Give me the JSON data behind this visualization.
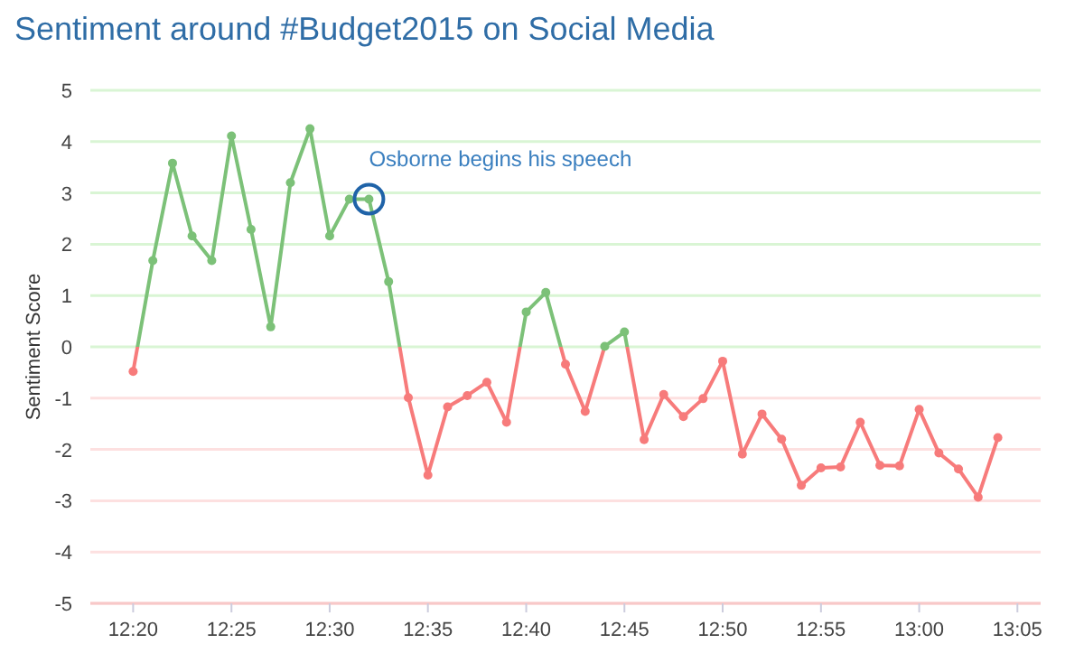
{
  "chart_data": {
    "type": "line",
    "title": "Sentiment around #Budget2015 on Social Media",
    "ylabel": "Sentiment Score",
    "x": [
      12.3333,
      12.35,
      12.3667,
      12.3833,
      12.4,
      12.4167,
      12.4333,
      12.45,
      12.4667,
      12.4833,
      12.5,
      12.5167,
      12.5333,
      12.55,
      12.5667,
      12.5833,
      12.6,
      12.6167,
      12.6333,
      12.65,
      12.6667,
      12.6833,
      12.7,
      12.7167,
      12.7333,
      12.75,
      12.7667,
      12.7833,
      12.8,
      12.8167,
      12.8333,
      12.85,
      12.8667,
      12.8833,
      12.9,
      12.9167,
      12.9333,
      12.95,
      12.9667,
      12.9833,
      13,
      13.0167,
      13.0333,
      13.05,
      13.0667
    ],
    "series": [
      {
        "colors": [
          "#f77b7b",
          "#7cc178",
          "#7cc178",
          "#7cc178",
          "#7cc178",
          "#7cc178",
          "#7cc178",
          "#7cc178",
          "#7cc178",
          "#7cc178",
          "#7cc178",
          "#7cc178",
          "#7cc178",
          "#7cc178",
          "#f77b7b",
          "#f77b7b",
          "#f77b7b",
          "#f77b7b",
          "#f77b7b",
          "#f77b7b",
          "#7cc178",
          "#7cc178",
          "#f77b7b",
          "#f77b7b",
          "#7cc178",
          "#7cc178",
          "#f77b7b",
          "#f77b7b",
          "#f77b7b",
          "#f77b7b",
          "#f77b7b",
          "#f77b7b",
          "#f77b7b",
          "#f77b7b",
          "#f77b7b",
          "#f77b7b",
          "#f77b7b",
          "#f77b7b",
          "#f77b7b",
          "#f77b7b",
          "#f77b7b",
          "#f77b7b",
          "#f77b7b",
          "#f77b7b",
          "#f77b7b"
        ],
        "values": [
          -0.48,
          1.68,
          3.58,
          2.16,
          1.68,
          4.11,
          2.29,
          0.39,
          3.2,
          4.25,
          2.16,
          2.88,
          2.88,
          1.27,
          -0.99,
          -2.5,
          -1.17,
          -0.95,
          -0.69,
          -1.47,
          0.68,
          1.06,
          -0.34,
          -1.26,
          0.01,
          0.29,
          -1.81,
          -0.93,
          -1.36,
          -1.01,
          -0.28,
          -2.09,
          -1.31,
          -1.8,
          -2.7,
          -2.36,
          -2.34,
          -1.47,
          -2.31,
          -2.32,
          -1.22,
          -2.07,
          -2.38,
          -2.93,
          -1.77
        ]
      }
    ],
    "xlim": [
      12.297,
      13.103
    ],
    "xticks": [
      {
        "value": 12.3333,
        "label": "12:20"
      },
      {
        "value": 12.4167,
        "label": "12:25"
      },
      {
        "value": 12.5,
        "label": "12:30"
      },
      {
        "value": 12.5833,
        "label": "12:35"
      },
      {
        "value": 12.6667,
        "label": "12:40"
      },
      {
        "value": 12.75,
        "label": "12:45"
      },
      {
        "value": 12.8333,
        "label": "12:50"
      },
      {
        "value": 12.9167,
        "label": "12:55"
      },
      {
        "value": 13,
        "label": "13:00"
      },
      {
        "value": 13.0833,
        "label": "13:05"
      }
    ],
    "ylim": [
      -5,
      5
    ],
    "yticks": [
      -5,
      -4,
      -3,
      -2,
      -1,
      0,
      1,
      2,
      3,
      4,
      5
    ],
    "grid": "y",
    "marker": "circle",
    "line_style": "solid",
    "annotations": [
      {
        "text": "Osborne begins his speech",
        "x": 12.5333,
        "y": 2.88
      }
    ]
  }
}
